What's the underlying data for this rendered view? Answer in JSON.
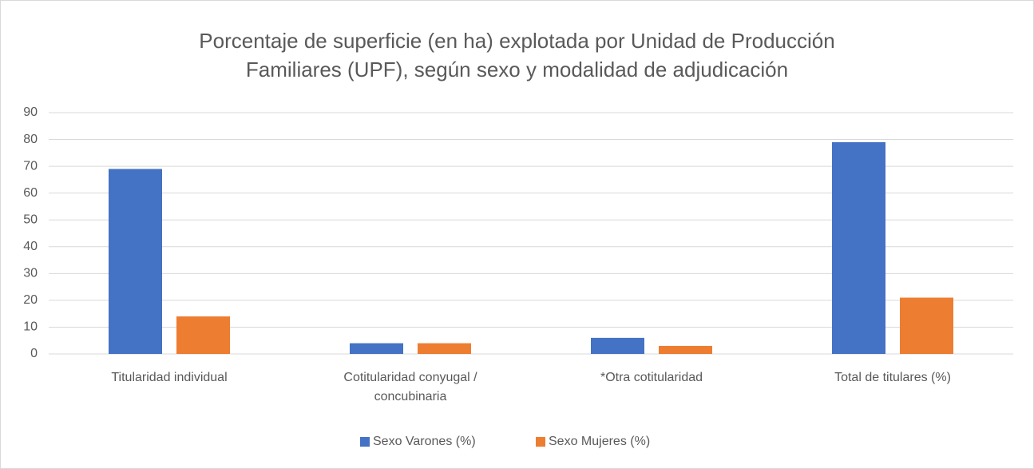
{
  "chart_data": {
    "type": "bar",
    "title": "Porcentaje de superficie (en ha) explotada por Unidad de Producción Familiares (UPF), según sexo y modalidad de adjudicación",
    "categories": [
      "Titularidad individual",
      "Cotitularidad conyugal / concubinaria",
      "*Otra cotitularidad",
      "Total de titulares (%)"
    ],
    "series": [
      {
        "name": "Sexo Varones (%)",
        "color": "#4472c4",
        "values": [
          69,
          4,
          6,
          79
        ]
      },
      {
        "name": "Sexo Mujeres (%)",
        "color": "#ed7d31",
        "values": [
          14,
          4,
          3,
          21
        ]
      }
    ],
    "ylim": [
      0,
      90
    ],
    "yticks": [
      0,
      10,
      20,
      30,
      40,
      50,
      60,
      70,
      80,
      90
    ],
    "grid": true,
    "legend": "bottom"
  }
}
